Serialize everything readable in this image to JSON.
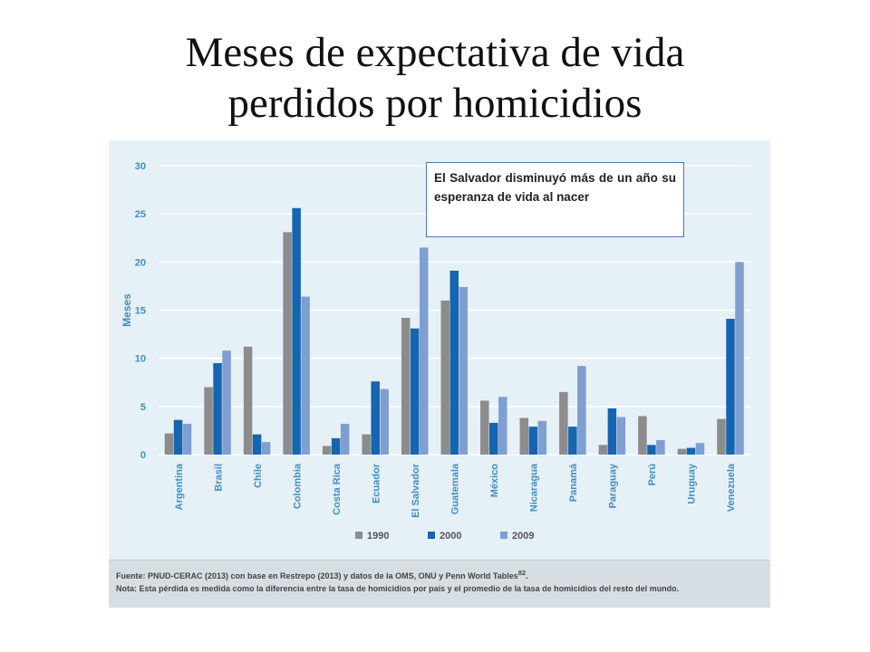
{
  "slide": {
    "title_line1": "Meses de expectativa de vida",
    "title_line2": "perdidos por homicidios",
    "callout": "El Salvador disminuyó más de un año su esperanza de vida al nacer"
  },
  "footer": {
    "source": "Fuente: PNUD-CERAC (2013) con base en Restrepo (2013) y datos de la OMS, ONU y Penn World Tables",
    "source_sup": "82",
    "note": "Nota: Esta pérdida es medida como la diferencia entre la tasa de homicidios por país y el promedio de la tasa de homicidios del resto del mundo."
  },
  "colors": {
    "1990": "#8c8c8c",
    "2000": "#1565b0",
    "2009": "#7f9fd1",
    "grid": "#ffffff",
    "axis_text": "#3f8fc4"
  },
  "chart_data": {
    "type": "bar",
    "title": "",
    "xlabel": "",
    "ylabel": "Meses",
    "ylim": [
      0,
      30
    ],
    "yticks": [
      0,
      5,
      10,
      15,
      20,
      25,
      30
    ],
    "grid": true,
    "legend_position": "bottom",
    "categories": [
      "Argentina",
      "Brasil",
      "Chile",
      "Colombia",
      "Costa Rica",
      "Ecuador",
      "El Salvador",
      "Guatemala",
      "México",
      "Nicaragua",
      "Panamá",
      "Paraguay",
      "Perú",
      "Uruguay",
      "Venezuela"
    ],
    "series": [
      {
        "name": "1990",
        "values": [
          2.2,
          7.0,
          11.2,
          23.1,
          0.9,
          2.1,
          14.2,
          16.0,
          5.6,
          3.8,
          6.5,
          1.0,
          4.0,
          0.6,
          3.7
        ]
      },
      {
        "name": "2000",
        "values": [
          3.6,
          9.5,
          2.1,
          25.6,
          1.7,
          7.6,
          13.1,
          19.1,
          3.3,
          2.9,
          2.9,
          4.8,
          1.0,
          0.7,
          14.1
        ]
      },
      {
        "name": "2009",
        "values": [
          3.2,
          10.8,
          1.3,
          16.4,
          3.2,
          6.8,
          21.5,
          17.4,
          6.0,
          3.5,
          9.2,
          3.9,
          1.5,
          1.2,
          20.0
        ]
      }
    ]
  }
}
